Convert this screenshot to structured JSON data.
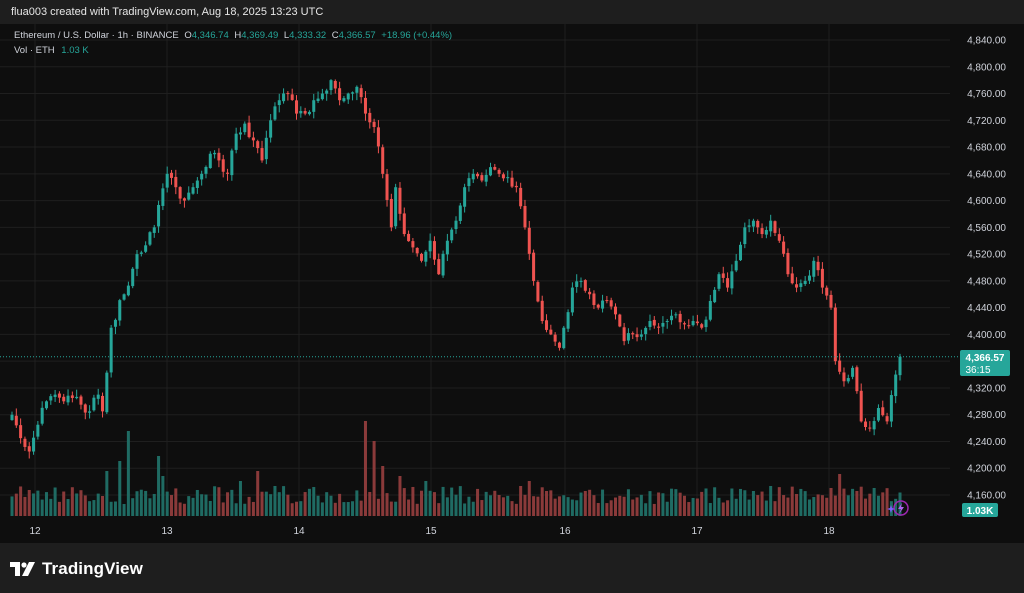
{
  "header": {
    "created_by": "flua003 created with TradingView.com, Aug 18, 2025 13:23 UTC"
  },
  "legend": {
    "symbol": "Ethereum / U.S. Dollar · 1h · BINANCE",
    "o_label": "O",
    "o_value": "4,346.74",
    "h_label": "H",
    "h_value": "4,369.49",
    "l_label": "L",
    "l_value": "4,333.32",
    "c_label": "C",
    "c_value": "4,366.57",
    "change": "+18.96 (+0.44%)",
    "vol_label": "Vol · ETH",
    "vol_value": "1.03 K"
  },
  "price_tag": {
    "price": "4,366.57",
    "countdown": "36:15"
  },
  "volume_tag": "1.03K",
  "brand": "TradingView",
  "colors": {
    "up": "#26a69a",
    "down": "#ef5350",
    "up_vol": "#1f6b63",
    "down_vol": "#8a3a3a",
    "background": "#0e0e0e",
    "grid": "#1f1f1f",
    "text": "#d1d4dc"
  },
  "chart_data": {
    "type": "candlestick",
    "interval": "1h",
    "x": {
      "tick_labels": [
        "12",
        "13",
        "14",
        "15",
        "16",
        "17",
        "18"
      ]
    },
    "y": {
      "range": [
        4140,
        4860
      ],
      "tick_labels": [
        "4,840.00",
        "4,800.00",
        "4,760.00",
        "4,720.00",
        "4,680.00",
        "4,640.00",
        "4,600.00",
        "4,560.00",
        "4,520.00",
        "4,480.00",
        "4,440.00",
        "4,400.00",
        "4,360.00",
        "4,320.00",
        "4,280.00",
        "4,240.00",
        "4,200.00",
        "4,160.00"
      ],
      "tick_values": [
        4840,
        4800,
        4760,
        4720,
        4680,
        4640,
        4600,
        4560,
        4520,
        4480,
        4440,
        4400,
        4360,
        4320,
        4280,
        4240,
        4200,
        4160
      ]
    },
    "last_price": 4366.57,
    "anchors": [
      [
        0,
        4280
      ],
      [
        2,
        4245
      ],
      [
        4,
        4225
      ],
      [
        6,
        4265
      ],
      [
        8,
        4300
      ],
      [
        10,
        4310
      ],
      [
        12,
        4300
      ],
      [
        14,
        4305
      ],
      [
        16,
        4295
      ],
      [
        18,
        4285
      ],
      [
        20,
        4310
      ],
      [
        21,
        4285
      ],
      [
        23,
        4410
      ],
      [
        26,
        4460
      ],
      [
        29,
        4520
      ],
      [
        33,
        4560
      ],
      [
        36,
        4640
      ],
      [
        38,
        4620
      ],
      [
        40,
        4600
      ],
      [
        42,
        4620
      ],
      [
        44,
        4640
      ],
      [
        46,
        4670
      ],
      [
        48,
        4660
      ],
      [
        50,
        4640
      ],
      [
        52,
        4700
      ],
      [
        54,
        4715
      ],
      [
        56,
        4690
      ],
      [
        58,
        4660
      ],
      [
        60,
        4720
      ],
      [
        62,
        4750
      ],
      [
        64,
        4760
      ],
      [
        66,
        4730
      ],
      [
        68,
        4730
      ],
      [
        70,
        4750
      ],
      [
        72,
        4760
      ],
      [
        74,
        4780
      ],
      [
        76,
        4750
      ],
      [
        78,
        4760
      ],
      [
        80,
        4770
      ],
      [
        82,
        4730
      ],
      [
        84,
        4710
      ],
      [
        86,
        4640
      ],
      [
        88,
        4560
      ],
      [
        89,
        4620
      ],
      [
        91,
        4550
      ],
      [
        93,
        4530
      ],
      [
        95,
        4510
      ],
      [
        97,
        4540
      ],
      [
        99,
        4490
      ],
      [
        101,
        4540
      ],
      [
        103,
        4570
      ],
      [
        105,
        4620
      ],
      [
        107,
        4640
      ],
      [
        109,
        4630
      ],
      [
        111,
        4650
      ],
      [
        113,
        4640
      ],
      [
        115,
        4635
      ],
      [
        117,
        4620
      ],
      [
        119,
        4560
      ],
      [
        121,
        4480
      ],
      [
        123,
        4420
      ],
      [
        125,
        4400
      ],
      [
        127,
        4380
      ],
      [
        128,
        4410
      ],
      [
        130,
        4470
      ],
      [
        132,
        4480
      ],
      [
        134,
        4460
      ],
      [
        136,
        4440
      ],
      [
        138,
        4450
      ],
      [
        140,
        4430
      ],
      [
        142,
        4390
      ],
      [
        144,
        4400
      ],
      [
        146,
        4400
      ],
      [
        148,
        4420
      ],
      [
        150,
        4410
      ],
      [
        152,
        4420
      ],
      [
        154,
        4430
      ],
      [
        156,
        4415
      ],
      [
        158,
        4420
      ],
      [
        160,
        4410
      ],
      [
        162,
        4450
      ],
      [
        164,
        4490
      ],
      [
        166,
        4470
      ],
      [
        168,
        4510
      ],
      [
        170,
        4560
      ],
      [
        172,
        4570
      ],
      [
        174,
        4550
      ],
      [
        176,
        4570
      ],
      [
        178,
        4540
      ],
      [
        180,
        4490
      ],
      [
        182,
        4470
      ],
      [
        184,
        4480
      ],
      [
        186,
        4510
      ],
      [
        188,
        4470
      ],
      [
        190,
        4440
      ],
      [
        191,
        4360
      ],
      [
        193,
        4330
      ],
      [
        195,
        4350
      ],
      [
        197,
        4270
      ],
      [
        199,
        4260
      ],
      [
        201,
        4290
      ],
      [
        203,
        4270
      ],
      [
        205,
        4340
      ],
      [
        206,
        4366.57
      ]
    ],
    "volume": {
      "last": "1.03K",
      "spikes": [
        [
          22,
          0.45
        ],
        [
          25,
          0.55
        ],
        [
          27,
          0.85
        ],
        [
          34,
          0.6
        ],
        [
          35,
          0.4
        ],
        [
          53,
          0.35
        ],
        [
          57,
          0.45
        ],
        [
          61,
          0.3
        ],
        [
          82,
          0.95
        ],
        [
          84,
          0.75
        ],
        [
          86,
          0.5
        ],
        [
          90,
          0.4
        ],
        [
          96,
          0.35
        ],
        [
          118,
          0.3
        ],
        [
          120,
          0.35
        ],
        [
          124,
          0.25
        ],
        [
          133,
          0.25
        ],
        [
          172,
          0.25
        ],
        [
          176,
          0.3
        ],
        [
          182,
          0.22
        ],
        [
          190,
          0.28
        ],
        [
          192,
          0.42
        ],
        [
          196,
          0.25
        ]
      ]
    }
  }
}
